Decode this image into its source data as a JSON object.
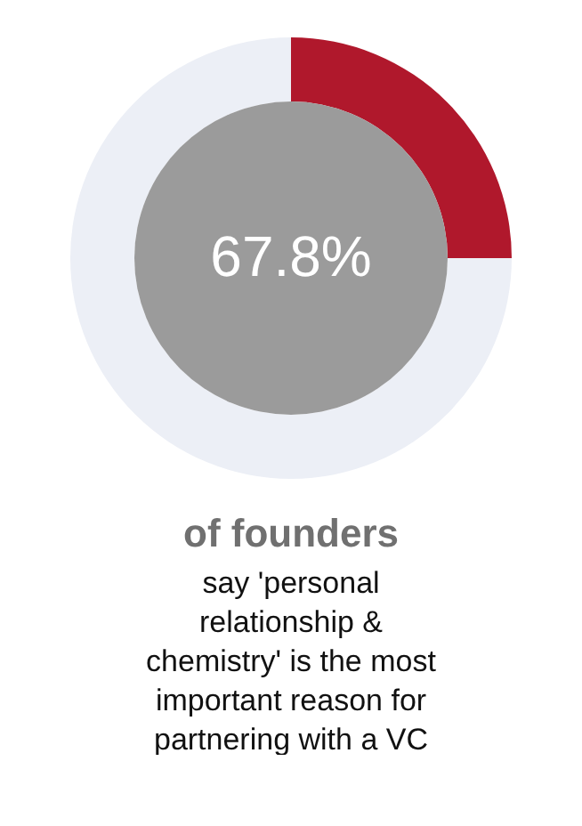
{
  "chart_data": {
    "type": "donut",
    "title": "of founders",
    "subtitle": "say 'personal relationship & chemistry' is the most important reason for partnering with a VC",
    "categories": [
      null,
      null
    ],
    "values": [
      25,
      75
    ],
    "colors": [
      "#b0182c",
      "#eceff6"
    ],
    "annotations": [
      "67.8%"
    ]
  }
}
